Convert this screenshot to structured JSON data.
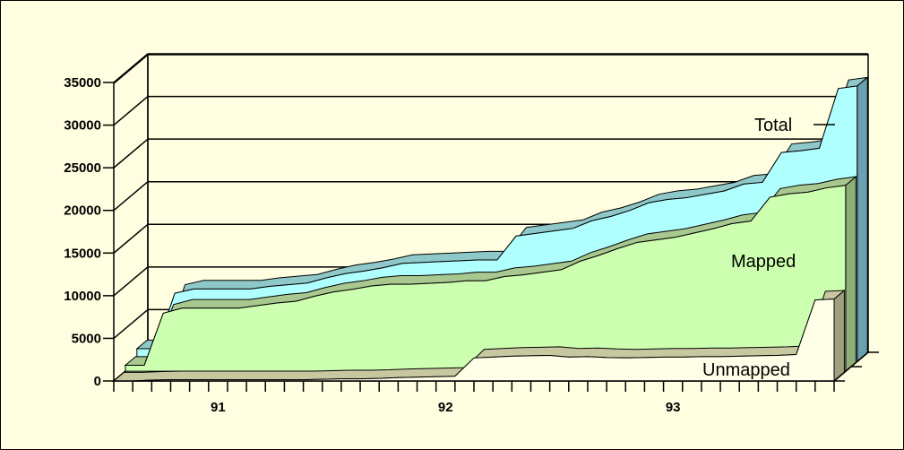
{
  "chart_data": {
    "type": "area",
    "title": "",
    "xlabel": "",
    "ylabel": "",
    "ylim": [
      0,
      35000
    ],
    "grid": true,
    "yticks": [
      0,
      5000,
      10000,
      15000,
      20000,
      25000,
      30000,
      35000
    ],
    "xtick_labels": [
      {
        "label": "91",
        "index": 5
      },
      {
        "label": "92",
        "index": 17
      },
      {
        "label": "93",
        "index": 29
      }
    ],
    "series": [
      {
        "name": "Total",
        "color": "#b0ffff",
        "values": [
          1500,
          1500,
          8000,
          8500,
          8500,
          8500,
          8500,
          8800,
          9000,
          9200,
          9800,
          10300,
          10600,
          11000,
          11500,
          11600,
          11700,
          11800,
          11900,
          11900,
          14700,
          15000,
          15300,
          15600,
          16500,
          17000,
          17700,
          18600,
          19000,
          19200,
          19600,
          20000,
          20800,
          21000,
          24500,
          24700,
          25000,
          32000,
          32300
        ]
      },
      {
        "name": "Mapped",
        "color": "#ccffb0",
        "values": [
          700,
          700,
          6800,
          7400,
          7400,
          7400,
          7400,
          7700,
          8000,
          8200,
          8800,
          9300,
          9600,
          10000,
          10200,
          10200,
          10300,
          10400,
          10600,
          10600,
          11100,
          11300,
          11600,
          11900,
          12900,
          13600,
          14400,
          15100,
          15400,
          15700,
          16200,
          16700,
          17300,
          17600,
          20400,
          20800,
          21000,
          21500,
          21800
        ]
      },
      {
        "name": "Unmapped",
        "color": "#ffffe8",
        "values": [
          0,
          0,
          100,
          150,
          150,
          150,
          150,
          150,
          150,
          150,
          150,
          200,
          250,
          250,
          300,
          400,
          450,
          500,
          550,
          2700,
          2800,
          2900,
          2950,
          3000,
          2800,
          2850,
          2750,
          2700,
          2750,
          2800,
          2800,
          2850,
          2850,
          2900,
          2950,
          3000,
          3100,
          9500,
          9600
        ]
      }
    ]
  }
}
